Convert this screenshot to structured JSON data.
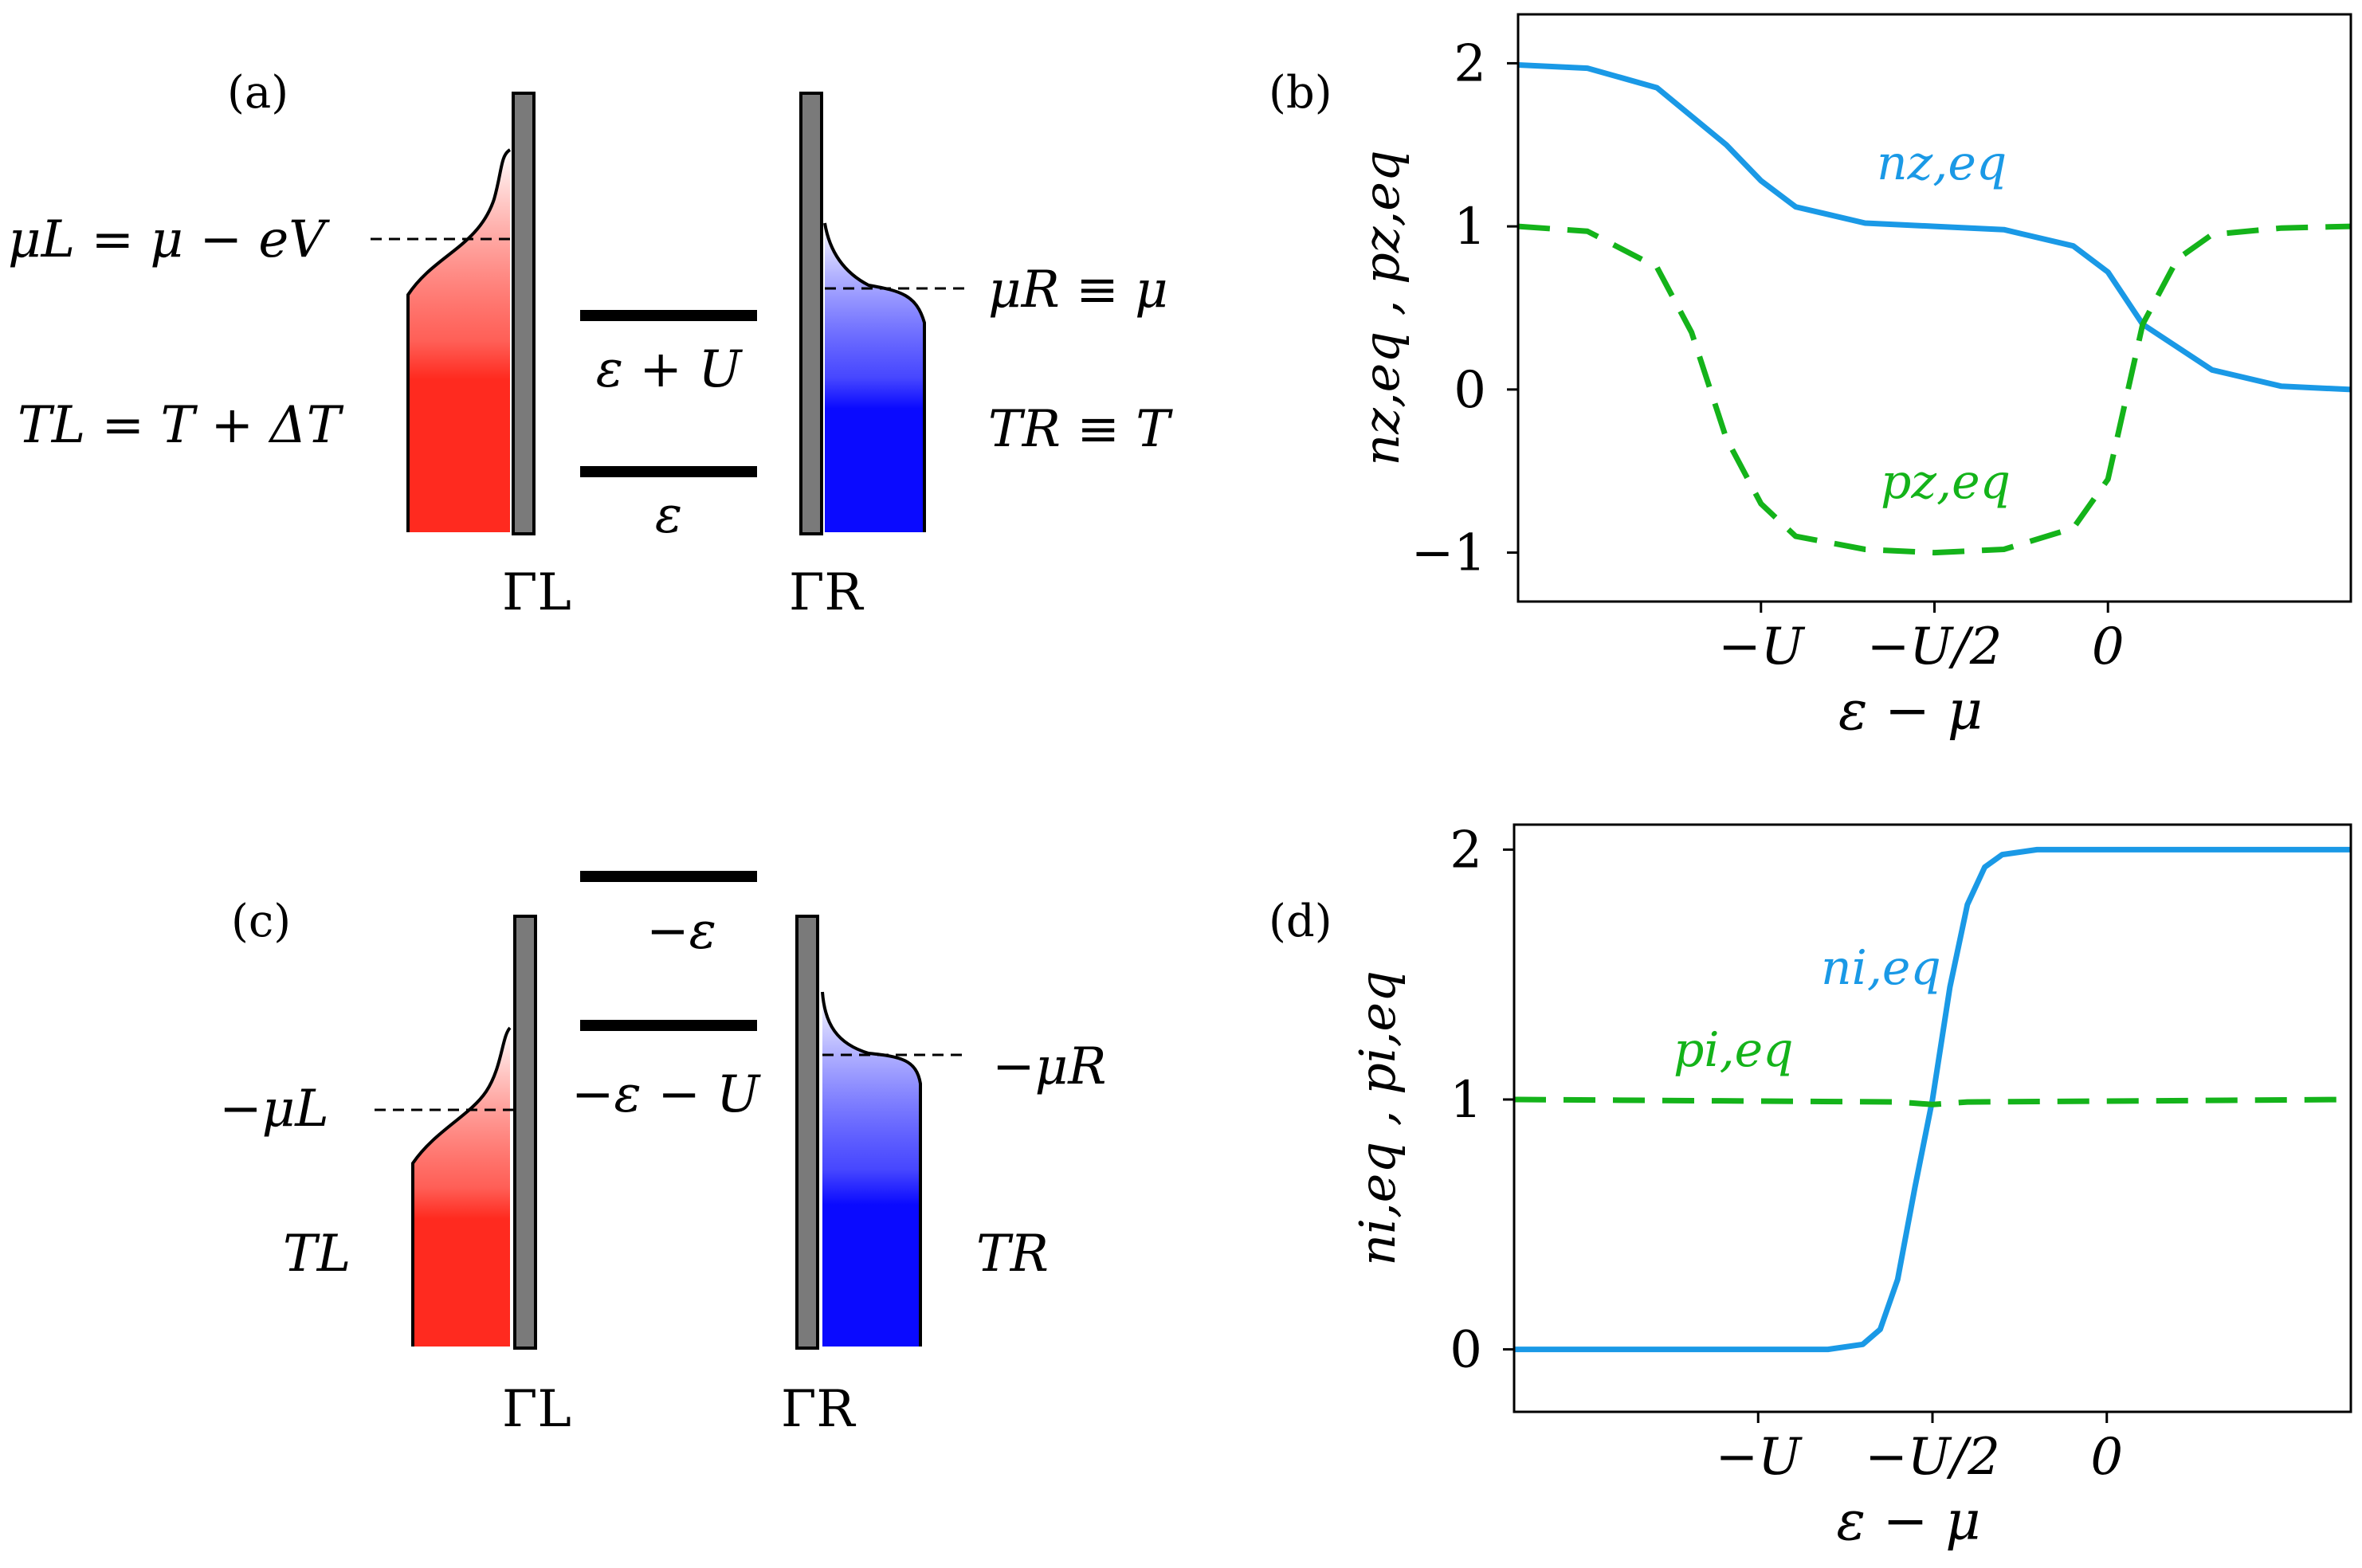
{
  "figure": {
    "panel_labels": {
      "a": "(a)",
      "b": "(b)",
      "c": "(c)",
      "d": "(d)"
    },
    "colors": {
      "lead_left": "#ff2a1f",
      "lead_right": "#0a0aff",
      "barrier": "#7a7a7a",
      "curve_n": "#1a99e6",
      "curve_p": "#14b31a"
    },
    "panel_a": {
      "mu_left": "μL = μ − eV",
      "T_left": "TL = T + ΔT",
      "mu_right": "μR ≡ μ",
      "T_right": "TR ≡ T",
      "level_upper": "ε + U",
      "level_lower": "ε",
      "gamma_left": "ΓL",
      "gamma_right": "ΓR"
    },
    "panel_c": {
      "mu_left": "−μL",
      "T_left": "TL",
      "mu_right": "−μR",
      "T_right": "TR",
      "level_upper": "−ε",
      "level_lower": "−ε − U",
      "gamma_left": "ΓL",
      "gamma_right": "ΓR"
    }
  },
  "chart_data": [
    {
      "panel": "b",
      "type": "line",
      "xlabel": "ε − μ",
      "ylabel": "nz,eq , pz,eq",
      "xticks": [
        "−U",
        "−U/2",
        "0"
      ],
      "xtick_values": [
        -1,
        -0.5,
        0
      ],
      "yticks": [
        "−1",
        "0",
        "1",
        "2"
      ],
      "ylim": [
        -1.3,
        2.3
      ],
      "xlim": [
        -1.7,
        0.7
      ],
      "grid": false,
      "series": [
        {
          "name": "nz,eq",
          "style": "solid",
          "color": "#1a99e6",
          "x": [
            -1.7,
            -1.5,
            -1.3,
            -1.1,
            -1.0,
            -0.9,
            -0.7,
            -0.5,
            -0.3,
            -0.1,
            0.0,
            0.1,
            0.3,
            0.5,
            0.7
          ],
          "y": [
            1.99,
            1.97,
            1.85,
            1.5,
            1.28,
            1.12,
            1.02,
            1.0,
            0.98,
            0.88,
            0.72,
            0.4,
            0.12,
            0.02,
            0.0
          ]
        },
        {
          "name": "pz,eq",
          "style": "dashed",
          "color": "#14b31a",
          "x": [
            -1.7,
            -1.5,
            -1.3,
            -1.2,
            -1.1,
            -1.0,
            -0.9,
            -0.7,
            -0.5,
            -0.3,
            -0.1,
            0.0,
            0.1,
            0.2,
            0.3,
            0.5,
            0.7
          ],
          "y": [
            1.0,
            0.97,
            0.75,
            0.35,
            -0.3,
            -0.7,
            -0.9,
            -0.98,
            -1.0,
            -0.98,
            -0.85,
            -0.55,
            0.4,
            0.8,
            0.95,
            0.99,
            1.0
          ]
        }
      ]
    },
    {
      "panel": "d",
      "type": "line",
      "xlabel": "ε − μ",
      "ylabel": "ni,eq , pi,eq",
      "xticks": [
        "−U",
        "−U/2",
        "0"
      ],
      "xtick_values": [
        -1,
        -0.5,
        0
      ],
      "yticks": [
        "0",
        "1",
        "2"
      ],
      "ylim": [
        -0.25,
        2.1
      ],
      "xlim": [
        -1.7,
        0.7
      ],
      "grid": false,
      "series": [
        {
          "name": "ni,eq",
          "style": "solid",
          "color": "#1a99e6",
          "x": [
            -1.7,
            -0.8,
            -0.7,
            -0.65,
            -0.6,
            -0.55,
            -0.5,
            -0.45,
            -0.4,
            -0.35,
            -0.3,
            -0.2,
            0.7
          ],
          "y": [
            0.0,
            0.0,
            0.02,
            0.08,
            0.28,
            0.65,
            1.0,
            1.45,
            1.78,
            1.93,
            1.98,
            2.0,
            2.0
          ]
        },
        {
          "name": "pi,eq",
          "style": "dashed",
          "color": "#14b31a",
          "x": [
            -1.7,
            -0.6,
            -0.5,
            -0.4,
            0.7
          ],
          "y": [
            1.0,
            0.99,
            0.98,
            0.99,
            1.0
          ]
        }
      ]
    }
  ]
}
